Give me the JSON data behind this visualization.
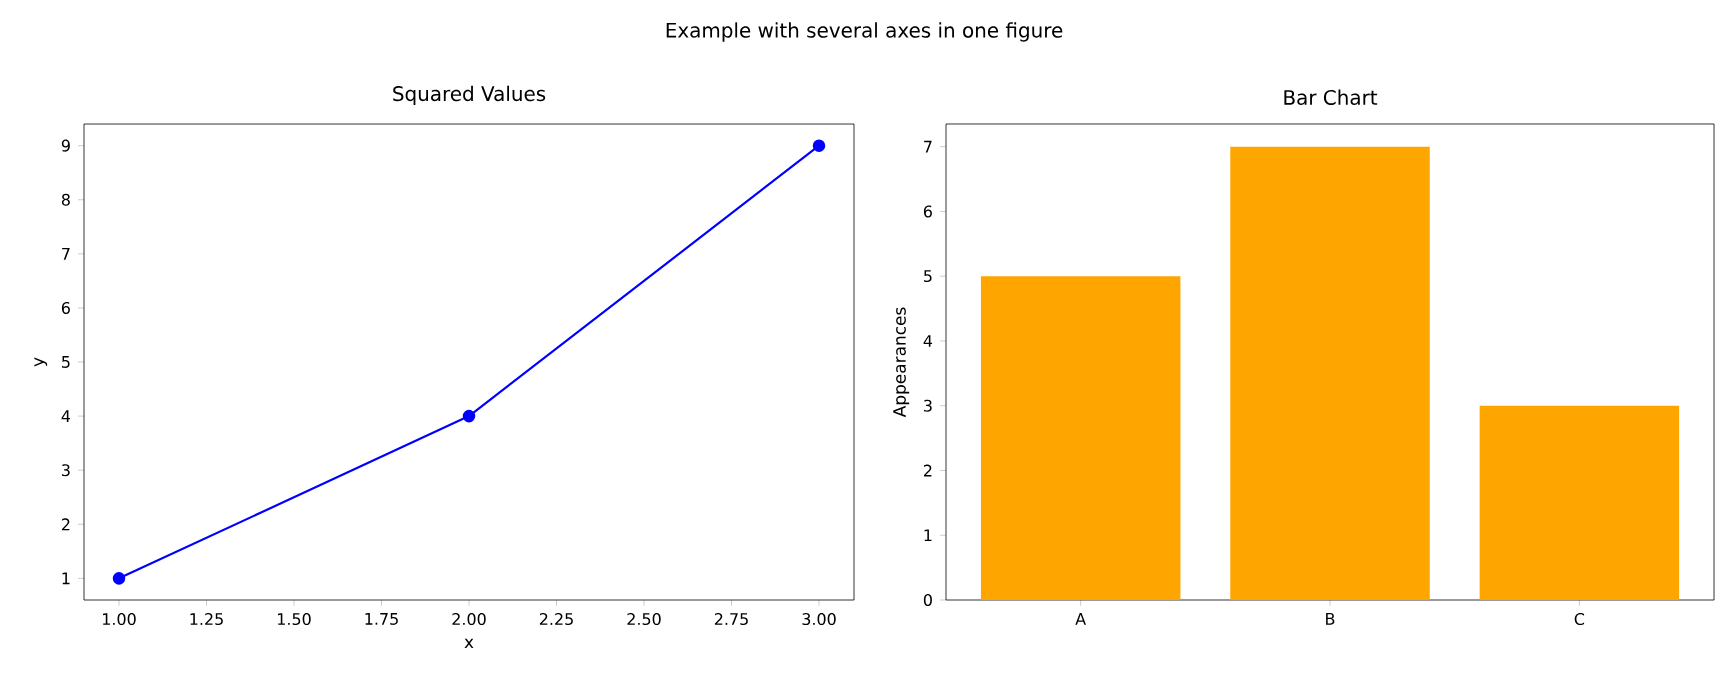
{
  "chart_data": [
    {
      "type": "line",
      "title": "Squared Values",
      "xlabel": "x",
      "ylabel": "y",
      "annotations": [
        "Example with several axes in one figure"
      ],
      "x": [
        1,
        2,
        3
      ],
      "values": [
        1,
        4,
        9
      ],
      "color": "#0000ff",
      "marker": "circle",
      "line_style": "solid",
      "xlim": [
        0.9,
        3.1
      ],
      "xticks": [
        {
          "value": 1,
          "label": "1.00"
        },
        {
          "value": 1.25,
          "label": "1.25"
        },
        {
          "value": 1.5,
          "label": "1.50"
        },
        {
          "value": 1.75,
          "label": "1.75"
        },
        {
          "value": 2,
          "label": "2.00"
        },
        {
          "value": 2.25,
          "label": "2.25"
        },
        {
          "value": 2.5,
          "label": "2.50"
        },
        {
          "value": 2.75,
          "label": "2.75"
        },
        {
          "value": 3,
          "label": "3.00"
        }
      ],
      "ylim": [
        0.6,
        9.4
      ],
      "yticks": [
        1,
        2,
        3,
        4,
        5,
        6,
        7,
        8,
        9
      ],
      "grid": false
    },
    {
      "type": "bar",
      "title": "Bar Chart",
      "ylabel": "Appearances",
      "categories": [
        "A",
        "B",
        "C"
      ],
      "values": [
        5,
        7,
        3
      ],
      "color": "#ffa500",
      "ylim": [
        0,
        7.35
      ],
      "yticks": [
        0,
        1,
        2,
        3,
        4,
        5,
        6,
        7
      ],
      "grid": false
    }
  ]
}
